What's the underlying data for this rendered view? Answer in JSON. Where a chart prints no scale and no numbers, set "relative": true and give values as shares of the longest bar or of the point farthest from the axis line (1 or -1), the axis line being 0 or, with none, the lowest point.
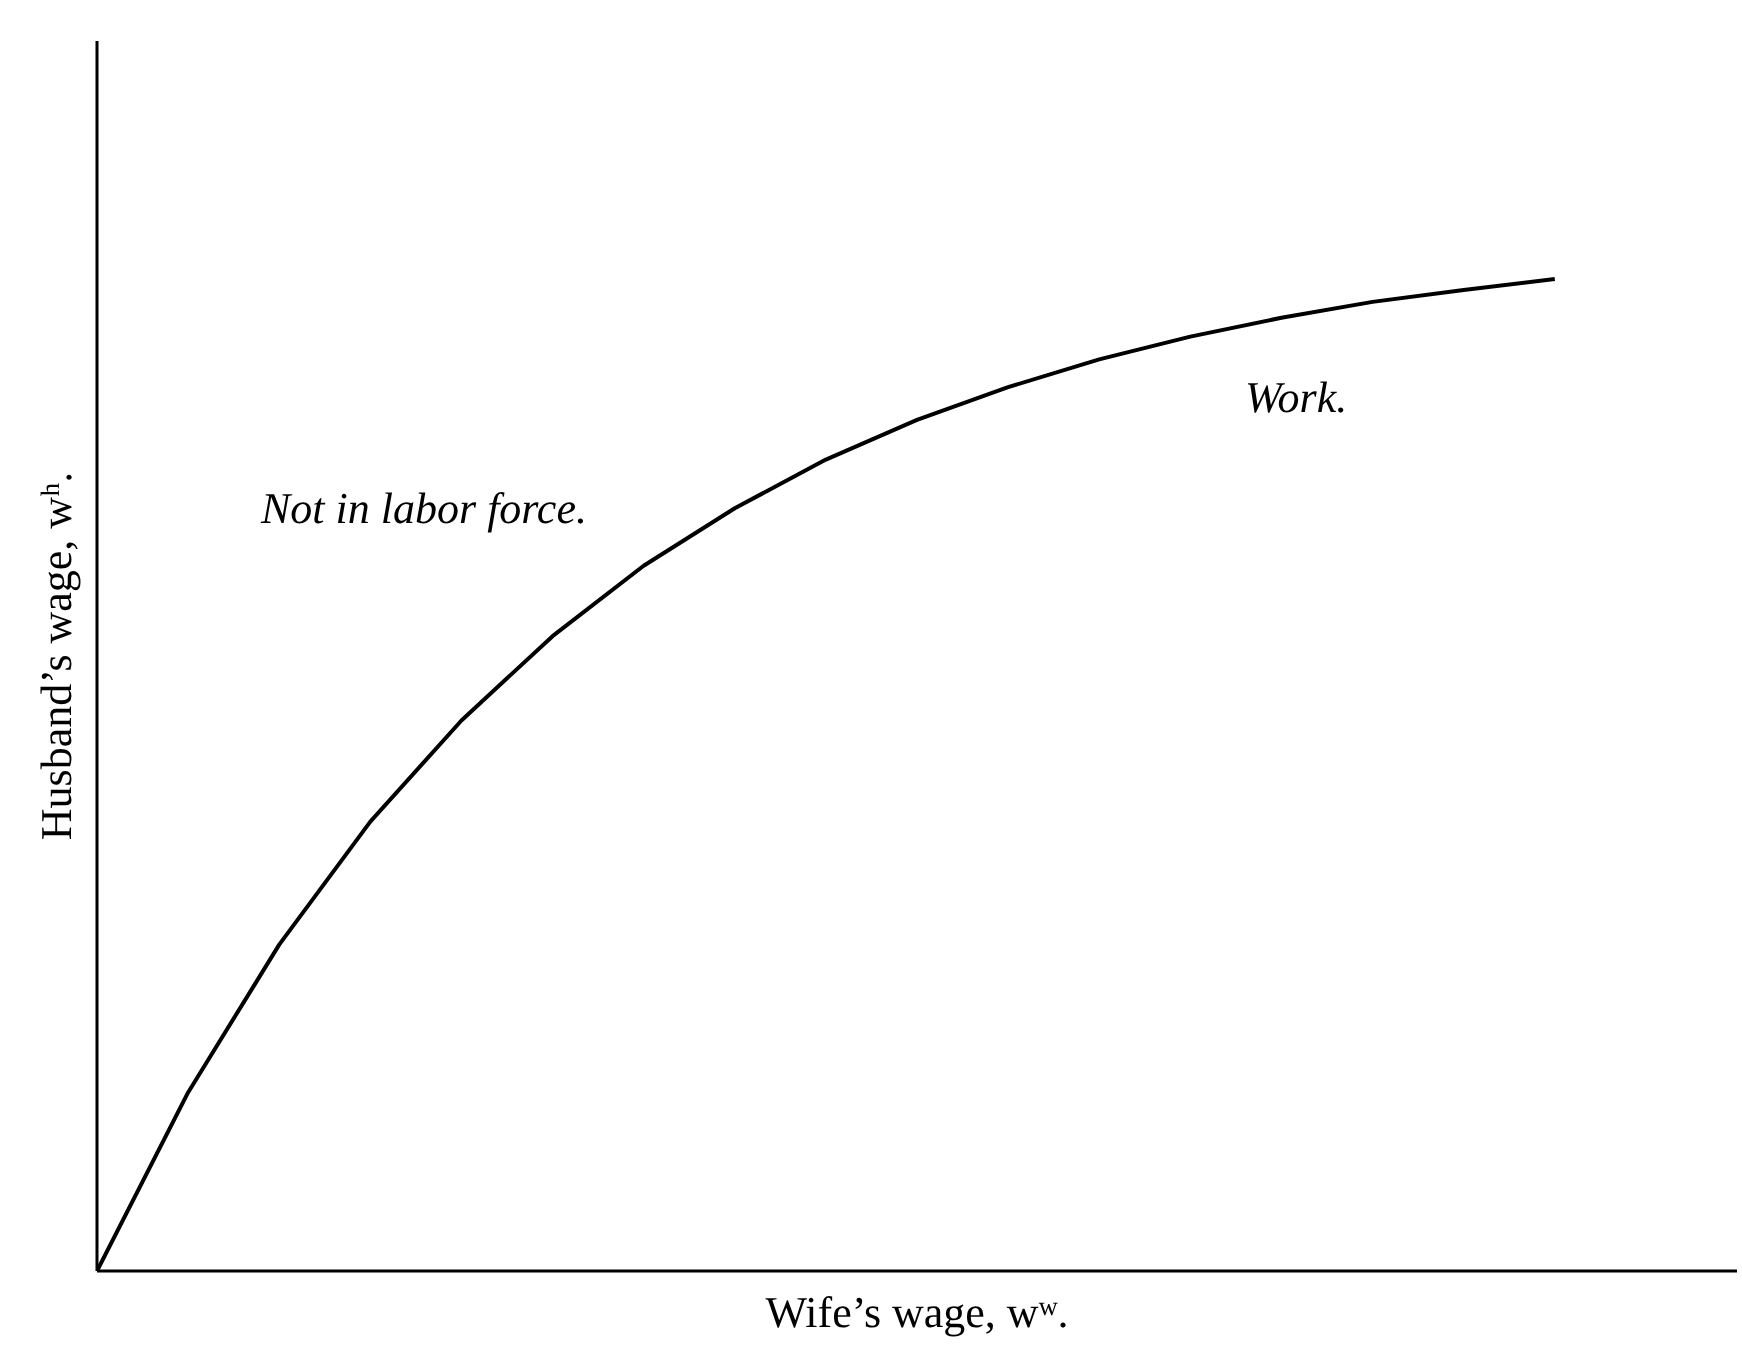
{
  "chart_data": {
    "type": "line",
    "relative": true,
    "xlabel": "Wife’s wage, wʷ.",
    "ylabel": "Husband’s wage, wʰ.",
    "categories": [
      null,
      null,
      null,
      null,
      null,
      null,
      null,
      null,
      null,
      null,
      null,
      null,
      null,
      null,
      null,
      null,
      null,
      null,
      null
    ],
    "series": [
      {
        "color": "#000000",
        "values": [
          0,
          0.18,
          0.329,
          0.453,
          0.555,
          0.64,
          0.711,
          0.769,
          0.818,
          0.858,
          0.891,
          0.919,
          0.942,
          0.961,
          0.977,
          0.989,
          1,
          null,
          null
        ]
      }
    ],
    "annotations": [
      "Not in labor force.",
      "Work."
    ],
    "marker": "none",
    "line_style": "solid"
  }
}
